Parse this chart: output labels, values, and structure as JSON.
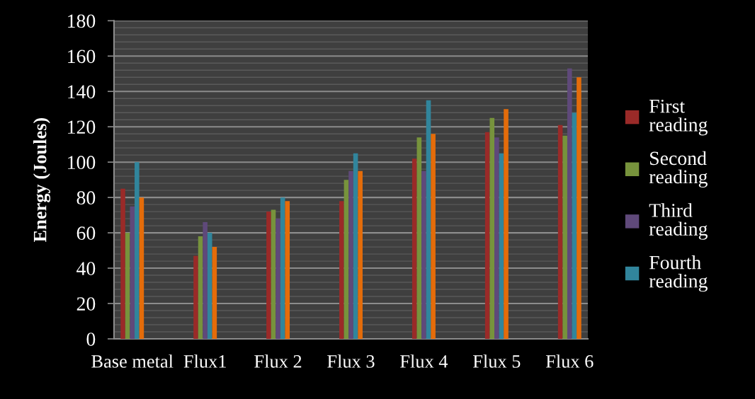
{
  "chart_data": {
    "type": "bar",
    "ylabel": "Energy (Joules)",
    "categories": [
      "Base metal",
      "Flux1",
      "Flux 2",
      "Flux 3",
      "Flux 4",
      "Flux 5",
      "Flux 6"
    ],
    "series": [
      {
        "name": "First reading",
        "color": "#9a2a28",
        "values": [
          85,
          47,
          72,
          78,
          102,
          117,
          121
        ]
      },
      {
        "name": "Second reading",
        "color": "#77933c",
        "values": [
          60,
          58,
          73,
          90,
          114,
          125,
          115
        ]
      },
      {
        "name": "Third reading",
        "color": "#5f497a",
        "values": [
          75,
          66,
          68,
          95,
          95,
          114,
          153
        ]
      },
      {
        "name": "Fourth reading",
        "color": "#31859c",
        "values": [
          100,
          60,
          80,
          105,
          135,
          105,
          128
        ]
      },
      {
        "color": "#e46c0a",
        "values": [
          80,
          52,
          78,
          95,
          116,
          130,
          148
        ]
      }
    ],
    "ylim": [
      0,
      180
    ],
    "yticks": [
      0,
      {
        "value": 4,
        "label": null
      },
      {
        "value": 8,
        "label": null
      },
      {
        "value": 12,
        "label": null
      },
      {
        "value": 16,
        "label": null
      },
      20,
      {
        "value": 24,
        "label": null
      },
      {
        "value": 28,
        "label": null
      },
      {
        "value": 32,
        "label": null
      },
      {
        "value": 36,
        "label": null
      },
      40,
      {
        "value": 44,
        "label": null
      },
      {
        "value": 48,
        "label": null
      },
      {
        "value": 52,
        "label": null
      },
      {
        "value": 56,
        "label": null
      },
      60,
      {
        "value": 64,
        "label": null
      },
      {
        "value": 68,
        "label": null
      },
      {
        "value": 72,
        "label": null
      },
      {
        "value": 76,
        "label": null
      },
      80,
      {
        "value": 84,
        "label": null
      },
      {
        "value": 88,
        "label": null
      },
      {
        "value": 92,
        "label": null
      },
      {
        "value": 96,
        "label": null
      },
      100,
      {
        "value": 104,
        "label": null
      },
      {
        "value": 108,
        "label": null
      },
      {
        "value": 112,
        "label": null
      },
      {
        "value": 116,
        "label": null
      },
      120,
      {
        "value": 124,
        "label": null
      },
      {
        "value": 128,
        "label": null
      },
      {
        "value": 132,
        "label": null
      },
      {
        "value": 136,
        "label": null
      },
      140,
      {
        "value": 144,
        "label": null
      },
      {
        "value": 148,
        "label": null
      },
      {
        "value": 152,
        "label": null
      },
      {
        "value": 156,
        "label": null
      },
      160,
      {
        "value": 164,
        "label": null
      },
      {
        "value": 168,
        "label": null
      },
      {
        "value": 172,
        "label": null
      },
      {
        "value": 176,
        "label": null
      },
      180
    ],
    "grid": "y",
    "legend": "right"
  }
}
